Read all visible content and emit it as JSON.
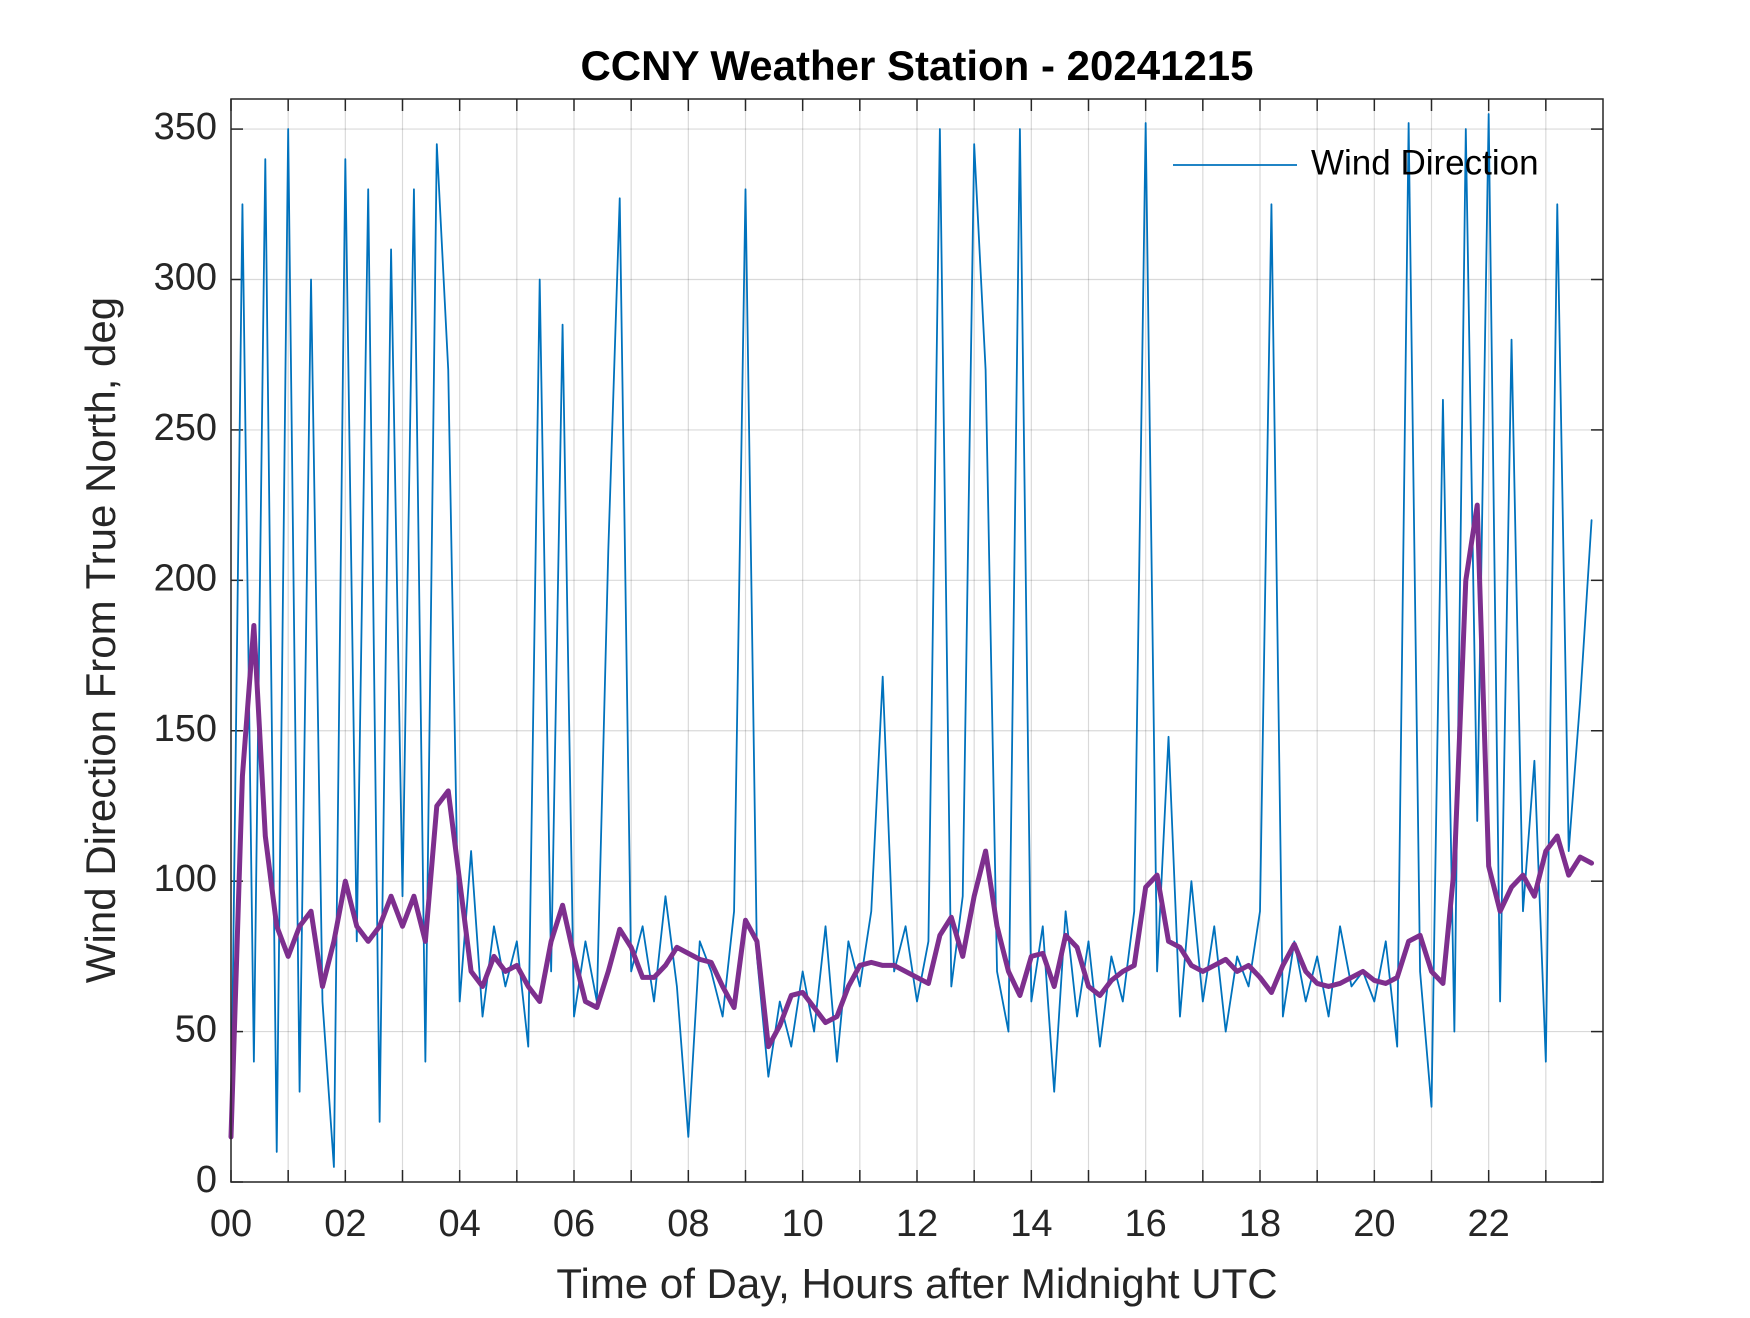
{
  "chart_data": {
    "type": "line",
    "title": "CCNY Weather Station - 20241215",
    "xlabel": "Time of Day, Hours after Midnight UTC",
    "ylabel": "Wind Direction From True North, deg",
    "x": [
      0,
      0.2,
      0.4,
      0.6,
      0.8,
      1,
      1.2,
      1.4,
      1.6,
      1.8,
      2,
      2.2,
      2.4,
      2.6,
      2.8,
      3,
      3.2,
      3.4,
      3.6,
      3.8,
      4,
      4.2,
      4.4,
      4.6,
      4.8,
      5,
      5.2,
      5.4,
      5.6,
      5.8,
      6,
      6.2,
      6.4,
      6.6,
      6.8,
      7,
      7.2,
      7.4,
      7.6,
      7.8,
      8,
      8.2,
      8.4,
      8.6,
      8.8,
      9,
      9.2,
      9.4,
      9.6,
      9.8,
      10,
      10.2,
      10.4,
      10.6,
      10.8,
      11,
      11.2,
      11.4,
      11.6,
      11.8,
      12,
      12.2,
      12.4,
      12.6,
      12.8,
      13,
      13.2,
      13.4,
      13.6,
      13.8,
      14,
      14.2,
      14.4,
      14.6,
      14.8,
      15,
      15.2,
      15.4,
      15.6,
      15.8,
      16,
      16.2,
      16.4,
      16.6,
      16.8,
      17,
      17.2,
      17.4,
      17.6,
      17.8,
      18,
      18.2,
      18.4,
      18.6,
      18.8,
      19,
      19.2,
      19.4,
      19.6,
      19.8,
      20,
      20.2,
      20.4,
      20.6,
      20.8,
      21,
      21.2,
      21.4,
      21.6,
      21.8,
      22,
      22.2,
      22.4,
      22.6,
      22.8,
      23,
      23.2,
      23.4,
      23.6,
      23.8
    ],
    "series": [
      {
        "name": "Wind Direction",
        "color": "#0072BD",
        "values": [
          15,
          325,
          40,
          340,
          10,
          350,
          30,
          300,
          60,
          5,
          340,
          80,
          330,
          20,
          310,
          95,
          330,
          40,
          345,
          270,
          60,
          110,
          55,
          85,
          65,
          80,
          45,
          300,
          70,
          285,
          55,
          80,
          60,
          210,
          327,
          70,
          85,
          60,
          95,
          65,
          15,
          80,
          70,
          55,
          90,
          330,
          75,
          35,
          60,
          45,
          70,
          50,
          85,
          40,
          80,
          65,
          90,
          168,
          70,
          85,
          60,
          80,
          350,
          65,
          95,
          345,
          270,
          70,
          50,
          350,
          60,
          85,
          30,
          90,
          55,
          80,
          45,
          75,
          60,
          90,
          352,
          70,
          148,
          55,
          100,
          60,
          85,
          50,
          75,
          65,
          90,
          325,
          55,
          80,
          60,
          75,
          55,
          85,
          65,
          70,
          60,
          80,
          45,
          352,
          70,
          25,
          260,
          50,
          350,
          120,
          355,
          60,
          280,
          90,
          140,
          40,
          325,
          110,
          160,
          220
        ]
      },
      {
        "color": "#7E2F8E",
        "values": [
          15,
          135,
          185,
          115,
          85,
          75,
          85,
          90,
          65,
          80,
          100,
          85,
          80,
          85,
          95,
          85,
          95,
          80,
          125,
          130,
          100,
          70,
          65,
          75,
          70,
          72,
          65,
          60,
          80,
          92,
          75,
          60,
          58,
          70,
          84,
          78,
          68,
          68,
          72,
          78,
          76,
          74,
          73,
          65,
          58,
          87,
          80,
          45,
          52,
          62,
          63,
          58,
          53,
          55,
          65,
          72,
          73,
          72,
          72,
          70,
          68,
          66,
          82,
          88,
          75,
          95,
          110,
          85,
          70,
          62,
          75,
          76,
          65,
          82,
          78,
          65,
          62,
          67,
          70,
          72,
          98,
          102,
          80,
          78,
          72,
          70,
          72,
          74,
          70,
          72,
          68,
          63,
          72,
          79,
          70,
          66,
          65,
          66,
          68,
          70,
          67,
          66,
          68,
          80,
          82,
          70,
          66,
          105,
          200,
          225,
          105,
          90,
          98,
          102,
          95,
          110,
          115,
          102,
          108,
          106
        ]
      }
    ],
    "xlim": [
      0,
      24
    ],
    "ylim": [
      0,
      360
    ],
    "xticks": [
      {
        "value": 0,
        "label": "00"
      },
      {
        "value": 2,
        "label": "02"
      },
      {
        "value": 4,
        "label": "04"
      },
      {
        "value": 6,
        "label": "06"
      },
      {
        "value": 8,
        "label": "08"
      },
      10,
      12,
      14,
      16,
      18,
      20,
      22
    ],
    "xminor_ticks": [
      1,
      3,
      5,
      7,
      9,
      11,
      13,
      15,
      17,
      19,
      21,
      23
    ],
    "yticks": [
      0,
      50,
      100,
      150,
      200,
      250,
      300,
      350
    ],
    "grid": true,
    "legend": "upper right"
  }
}
